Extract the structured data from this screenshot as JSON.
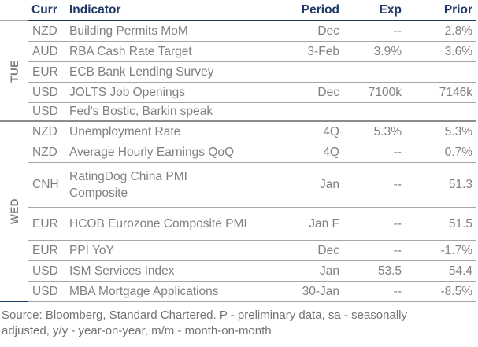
{
  "colors": {
    "header_text": "#1F3864",
    "header_rule": "#17375E",
    "data_text": "#808080",
    "row_line": "#A6A6A6",
    "section_line": "#8C8C8C",
    "footer_text": "#737373",
    "day_text": "#808080"
  },
  "table": {
    "headers": {
      "curr": "Curr",
      "indicator": "Indicator",
      "period": "Period",
      "exp": "Exp",
      "prior": "Prior"
    },
    "sections": [
      {
        "day": "TUE",
        "rows": [
          {
            "curr": "NZD",
            "indicator": "Building Permits MoM",
            "period": "Dec",
            "exp": "--",
            "prior": "2.8%"
          },
          {
            "curr": "AUD",
            "indicator": "RBA Cash Rate Target",
            "period": "3-Feb",
            "exp": "3.9%",
            "prior": "3.6%"
          },
          {
            "curr": "EUR",
            "indicator": "ECB Bank Lending Survey",
            "period": "",
            "exp": "",
            "prior": ""
          },
          {
            "curr": "USD",
            "indicator": "JOLTS Job Openings",
            "period": "Dec",
            "exp": "7100k",
            "prior": "7146k"
          },
          {
            "curr": "USD",
            "indicator": "Fed's Bostic, Barkin speak",
            "period": "",
            "exp": "",
            "prior": ""
          }
        ]
      },
      {
        "day": "WED",
        "rows": [
          {
            "curr": "NZD",
            "indicator": "Unemployment Rate",
            "period": "4Q",
            "exp": "5.3%",
            "prior": "5.3%"
          },
          {
            "curr": "NZD",
            "indicator": "Average Hourly Earnings QoQ",
            "period": "4Q",
            "exp": "--",
            "prior": "0.7%"
          },
          {
            "curr": "CNH",
            "indicator": "RatingDog China PMI Composite",
            "period": "Jan",
            "exp": "--",
            "prior": "51.3"
          },
          {
            "curr": "EUR",
            "indicator": "HCOB Eurozone Composite PMI",
            "period": "Jan F",
            "exp": "--",
            "prior": "51.5"
          },
          {
            "curr": "EUR",
            "indicator": "PPI YoY",
            "period": "Dec",
            "exp": "--",
            "prior": "-1.7%"
          },
          {
            "curr": "USD",
            "indicator": "ISM Services Index",
            "period": "Jan",
            "exp": "53.5",
            "prior": "54.4"
          },
          {
            "curr": "USD",
            "indicator": "MBA Mortgage Applications",
            "period": "30-Jan",
            "exp": "--",
            "prior": "-8.5%"
          }
        ]
      }
    ]
  },
  "footer": {
    "line1": "Source: Bloomberg, Standard Chartered. P - preliminary data, sa - seasonally",
    "line2": "adjusted, y/y - year-on-year, m/m - month-on-month"
  }
}
